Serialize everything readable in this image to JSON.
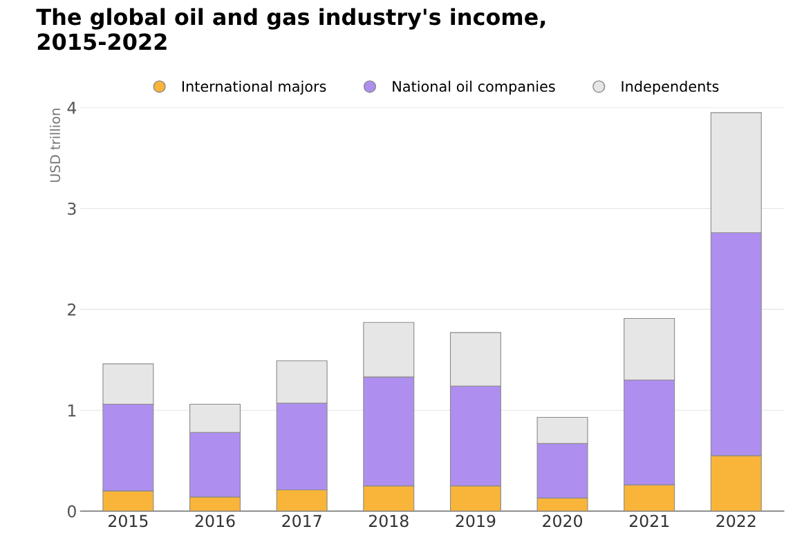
{
  "chart_data": {
    "type": "bar",
    "title": "The global oil and gas industry's income,\n2015-2022",
    "ylabel": "USD trillion",
    "categories": [
      "2015",
      "2016",
      "2017",
      "2018",
      "2019",
      "2020",
      "2021",
      "2022"
    ],
    "stacked": true,
    "series": [
      {
        "name": "International majors",
        "color": "#f9b53a",
        "values": [
          0.2,
          0.14,
          0.21,
          0.25,
          0.25,
          0.13,
          0.26,
          0.55
        ]
      },
      {
        "name": "National oil companies",
        "color": "#ae8ff0",
        "values": [
          0.86,
          0.64,
          0.86,
          1.08,
          0.99,
          0.54,
          1.04,
          2.21
        ]
      },
      {
        "name": "Independents",
        "color": "#e6e6e6",
        "values": [
          0.4,
          0.28,
          0.42,
          0.54,
          0.53,
          0.26,
          0.61,
          1.19
        ]
      }
    ],
    "ylim": [
      0,
      4
    ],
    "yticks": [
      0,
      1,
      2,
      3,
      4
    ],
    "grid": "y",
    "legend": "top"
  }
}
